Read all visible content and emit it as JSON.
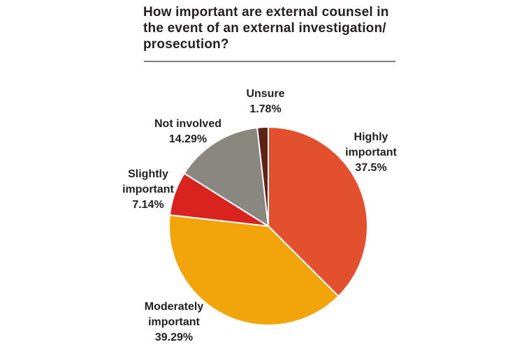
{
  "title": {
    "lines": [
      "How important are external counsel in",
      "the event of an external investigation/",
      "prosecution?"
    ],
    "text_color": "#231f20",
    "rule_color": "#7f7f7f"
  },
  "chart_data": {
    "type": "pie",
    "title": "How important are external counsel in the event of an external investigation/prosecution?",
    "start_angle_deg": 0,
    "direction": "clockwise",
    "categories": [
      "Highly important",
      "Moderately important",
      "Slightly important",
      "Not involved",
      "Unsure"
    ],
    "values": [
      37.5,
      39.29,
      7.14,
      14.29,
      1.78
    ],
    "slices": [
      {
        "label": "Highly important",
        "value": 37.5,
        "display": "37.5%",
        "color": "#e2502e"
      },
      {
        "label": "Moderately important",
        "value": 39.29,
        "display": "39.29%",
        "color": "#f2a50a"
      },
      {
        "label": "Slightly important",
        "value": 7.14,
        "display": "7.14%",
        "color": "#d8231e"
      },
      {
        "label": "Not involved",
        "value": 14.29,
        "display": "14.29%",
        "color": "#8a8781"
      },
      {
        "label": "Unsure",
        "value": 1.78,
        "display": "1.78%",
        "color": "#5e2317"
      }
    ],
    "slice_border_color": "#ffffff",
    "legend": "callout-labels-around-pie"
  },
  "callouts": {
    "unsure": {
      "lines": [
        "Unsure",
        "1.78%"
      ]
    },
    "not_involved": {
      "lines": [
        "Not involved",
        "14.29%"
      ]
    },
    "slightly": {
      "lines": [
        "Slightly",
        "important",
        "7.14%"
      ]
    },
    "highly": {
      "lines": [
        "Highly",
        "important",
        "37.5%"
      ]
    },
    "moderately": {
      "lines": [
        "Moderately",
        "important",
        "39.29%"
      ]
    }
  }
}
